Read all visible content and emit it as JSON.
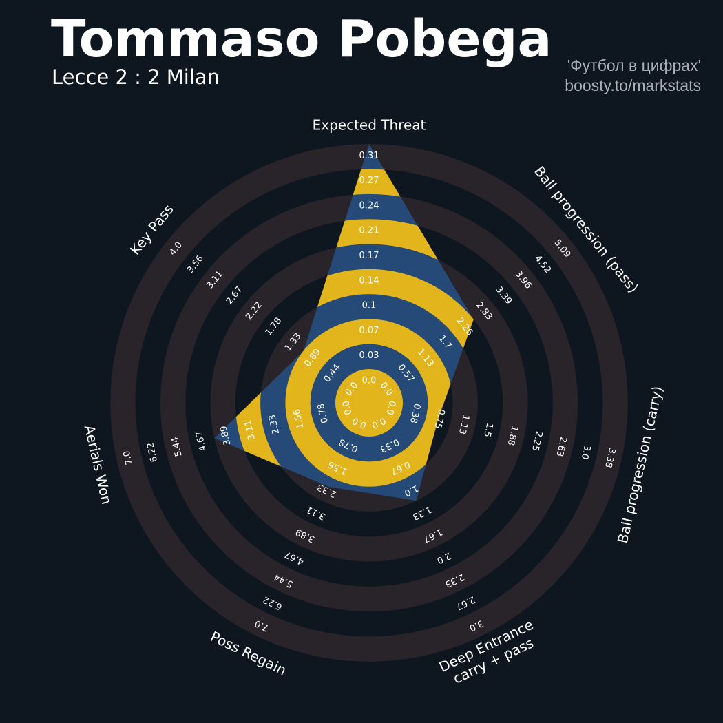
{
  "header": {
    "title": "Tommaso Pobega",
    "subtitle": "Lecce 2 : 2 Milan",
    "credit_line1": "'Футбол в цифрах'",
    "credit_line2": "boosty.to/markstats"
  },
  "colors": {
    "background": "#0e1720",
    "ring": "#29242a",
    "fill_primary": "#264a77",
    "fill_secondary": "#e3b51c",
    "label": "#ffffff",
    "credit": "#a9afb6"
  },
  "chart_data": {
    "type": "radar",
    "grid": "concentric-rings",
    "metrics": [
      {
        "name": "Expected Threat",
        "value": 0.31,
        "ticks": [
          "0.0",
          "0.03",
          "0.07",
          "0.1",
          "0.14",
          "0.17",
          "0.21",
          "0.24",
          "0.27",
          "0.31"
        ]
      },
      {
        "name": "Ball progression (pass)",
        "value": 2.26,
        "ticks": [
          "0.0",
          "0.57",
          "1.13",
          "1.7",
          "2.26",
          "2.83",
          "3.39",
          "3.96",
          "4.52",
          "5.09"
        ]
      },
      {
        "name": "Ball progression (carry)",
        "value": 0.56,
        "ticks": [
          "0.0",
          "0.38",
          "0.75",
          "1.13",
          "1.5",
          "1.88",
          "2.25",
          "2.63",
          "3.0",
          "3.38"
        ]
      },
      {
        "name": "Deep Entrance\ncarry + pass",
        "value": 1.0,
        "ticks": [
          "0.0",
          "0.33",
          "0.67",
          "1.0",
          "1.33",
          "1.67",
          "2.0",
          "2.33",
          "2.67",
          "3.0"
        ]
      },
      {
        "name": "Poss Regain",
        "value": 1.85,
        "ticks": [
          "0.0",
          "0.78",
          "1.56",
          "2.33",
          "3.11",
          "3.89",
          "4.67",
          "5.44",
          "6.22",
          "7.0"
        ]
      },
      {
        "name": "Aerials Won",
        "value": 3.89,
        "ticks": [
          "0.0",
          "0.78",
          "1.56",
          "2.33",
          "3.11",
          "3.89",
          "4.67",
          "5.44",
          "6.22",
          "7.0"
        ]
      },
      {
        "name": "Key Pass",
        "value": 0.89,
        "ticks": [
          "0.0",
          "0.44",
          "0.89",
          "1.33",
          "1.78",
          "2.22",
          "2.67",
          "3.11",
          "3.56",
          "4.0"
        ]
      }
    ]
  }
}
